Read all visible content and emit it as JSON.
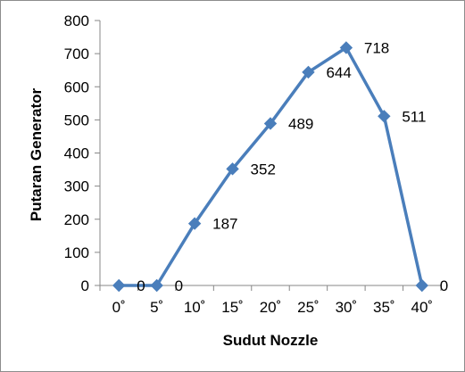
{
  "chart_data": {
    "type": "line",
    "categories": [
      "0˚",
      "5˚",
      "10˚",
      "15˚",
      "20˚",
      "25˚",
      "30˚",
      "35˚",
      "40˚"
    ],
    "values": [
      0,
      0,
      187,
      352,
      489,
      644,
      718,
      511,
      0
    ],
    "data_labels": [
      "0",
      "0",
      "187",
      "352",
      "489",
      "644",
      "718",
      "511",
      "0"
    ],
    "xlabel": "Sudut Nozzle",
    "ylabel": "Putaran Generator",
    "ylim": [
      0,
      800
    ],
    "yticks": [
      0,
      100,
      200,
      300,
      400,
      500,
      600,
      700,
      800
    ],
    "ytick_labels": [
      "0",
      "100",
      "200",
      "300",
      "400",
      "500",
      "600",
      "700",
      "800"
    ],
    "grid": false,
    "legend": "none",
    "series_color": "#4a7ebb",
    "marker": "diamond"
  }
}
